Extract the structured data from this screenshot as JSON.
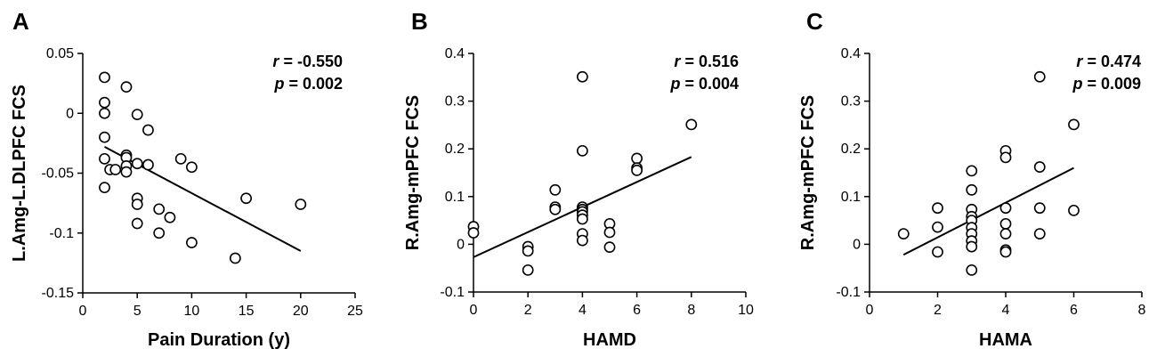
{
  "chart_data": [
    {
      "type": "scatter",
      "panel": "A",
      "xlabel": "Pain Duration (y)",
      "ylabel": "L.Amg-L.DLPFC FCS",
      "xlim": [
        0,
        25
      ],
      "ylim": [
        -0.15,
        0.05
      ],
      "xticks": [
        0,
        5,
        10,
        15,
        20,
        25
      ],
      "yticks": [
        0.05,
        0,
        -0.05,
        -0.1,
        -0.15
      ],
      "ytick_labels": [
        "0.05",
        "0",
        "-0.05",
        "-0.1",
        "-0.15"
      ],
      "stats": {
        "r_label": "r",
        "r_value": "-0.550",
        "p_label": "p",
        "p_value": "0.002"
      },
      "fit_line": {
        "x": [
          2,
          20
        ],
        "y": [
          -0.028,
          -0.115
        ]
      },
      "points": [
        [
          2,
          0.03
        ],
        [
          2,
          0.009
        ],
        [
          2,
          0.0
        ],
        [
          2,
          -0.02
        ],
        [
          2,
          -0.038
        ],
        [
          2,
          -0.062
        ],
        [
          2.5,
          -0.047
        ],
        [
          3,
          -0.047
        ],
        [
          4,
          0.022
        ],
        [
          4,
          -0.035
        ],
        [
          4,
          -0.037
        ],
        [
          4,
          -0.044
        ],
        [
          4,
          -0.049
        ],
        [
          5,
          -0.001
        ],
        [
          5,
          -0.042
        ],
        [
          5,
          -0.071
        ],
        [
          5,
          -0.076
        ],
        [
          5,
          -0.092
        ],
        [
          6,
          -0.014
        ],
        [
          6,
          -0.043
        ],
        [
          7,
          -0.08
        ],
        [
          7,
          -0.1
        ],
        [
          8,
          -0.087
        ],
        [
          9,
          -0.038
        ],
        [
          10,
          -0.045
        ],
        [
          10,
          -0.108
        ],
        [
          14,
          -0.121
        ],
        [
          15,
          -0.071
        ],
        [
          20,
          -0.076
        ]
      ]
    },
    {
      "type": "scatter",
      "panel": "B",
      "xlabel": "HAMD",
      "ylabel": "R.Amg-mPFC FCS",
      "xlim": [
        0,
        10
      ],
      "ylim": [
        -0.1,
        0.4
      ],
      "xticks": [
        0,
        2,
        4,
        6,
        8,
        10
      ],
      "yticks": [
        0.4,
        0.3,
        0.2,
        0.1,
        0,
        -0.1
      ],
      "ytick_labels": [
        "0.4",
        "0.3",
        "0.2",
        "0.1",
        "0",
        "-0.1"
      ],
      "stats": {
        "r_label": "r",
        "r_value": "0.516",
        "p_label": "p",
        "p_value": "0.004"
      },
      "fit_line": {
        "x": [
          0,
          8
        ],
        "y": [
          -0.027,
          0.183
        ]
      },
      "points": [
        [
          0,
          0.037
        ],
        [
          0,
          0.024
        ],
        [
          2,
          -0.005
        ],
        [
          2,
          -0.014
        ],
        [
          2,
          -0.054
        ],
        [
          3,
          0.114
        ],
        [
          3,
          0.078
        ],
        [
          3,
          0.073
        ],
        [
          4,
          0.351
        ],
        [
          4,
          0.196
        ],
        [
          4,
          0.078
        ],
        [
          4,
          0.073
        ],
        [
          4,
          0.068
        ],
        [
          4,
          0.061
        ],
        [
          4,
          0.053
        ],
        [
          4,
          0.022
        ],
        [
          4,
          0.008
        ],
        [
          5,
          0.043
        ],
        [
          5,
          0.025
        ],
        [
          5,
          -0.006
        ],
        [
          6,
          0.18
        ],
        [
          6,
          0.16
        ],
        [
          6,
          0.155
        ],
        [
          8,
          0.251
        ]
      ]
    },
    {
      "type": "scatter",
      "panel": "C",
      "xlabel": "HAMA",
      "ylabel": "R.Amg-mPFC FCS",
      "xlim": [
        0,
        8
      ],
      "ylim": [
        -0.1,
        0.4
      ],
      "xticks": [
        0,
        2,
        4,
        6,
        8
      ],
      "yticks": [
        0.4,
        0.3,
        0.2,
        0.1,
        0,
        -0.1
      ],
      "ytick_labels": [
        "0.4",
        "0.3",
        "0.2",
        "0.1",
        "0",
        "-0.1"
      ],
      "stats": {
        "r_label": "r",
        "r_value": "0.474",
        "p_label": "p",
        "p_value": "0.009"
      },
      "fit_line": {
        "x": [
          1,
          6
        ],
        "y": [
          -0.022,
          0.16
        ]
      },
      "points": [
        [
          1,
          0.022
        ],
        [
          2,
          0.076
        ],
        [
          2,
          0.036
        ],
        [
          2,
          -0.016
        ],
        [
          3,
          0.154
        ],
        [
          3,
          0.114
        ],
        [
          3,
          0.073
        ],
        [
          3,
          0.058
        ],
        [
          3,
          0.05
        ],
        [
          3,
          0.035
        ],
        [
          3,
          0.022
        ],
        [
          3,
          0.007
        ],
        [
          3,
          -0.005
        ],
        [
          3,
          -0.054
        ],
        [
          4,
          0.196
        ],
        [
          4,
          0.182
        ],
        [
          4,
          0.076
        ],
        [
          4,
          0.043
        ],
        [
          4,
          0.022
        ],
        [
          4,
          -0.012
        ],
        [
          4,
          -0.016
        ],
        [
          5,
          0.351
        ],
        [
          5,
          0.162
        ],
        [
          5,
          0.076
        ],
        [
          5,
          0.022
        ],
        [
          6,
          0.251
        ],
        [
          6,
          0.071
        ]
      ]
    }
  ]
}
